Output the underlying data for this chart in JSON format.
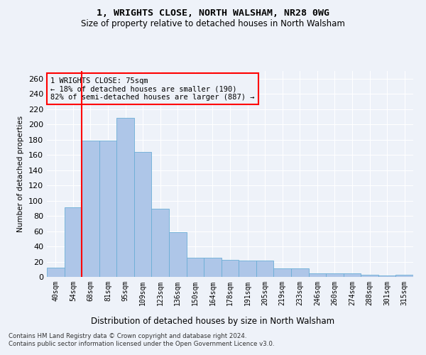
{
  "title1": "1, WRIGHTS CLOSE, NORTH WALSHAM, NR28 0WG",
  "title2": "Size of property relative to detached houses in North Walsham",
  "xlabel": "Distribution of detached houses by size in North Walsham",
  "ylabel": "Number of detached properties",
  "categories": [
    "40sqm",
    "54sqm",
    "68sqm",
    "81sqm",
    "95sqm",
    "109sqm",
    "123sqm",
    "136sqm",
    "150sqm",
    "164sqm",
    "178sqm",
    "191sqm",
    "205sqm",
    "219sqm",
    "233sqm",
    "246sqm",
    "260sqm",
    "274sqm",
    "288sqm",
    "301sqm",
    "315sqm"
  ],
  "values": [
    12,
    91,
    179,
    179,
    209,
    164,
    89,
    59,
    25,
    25,
    22,
    21,
    21,
    11,
    11,
    5,
    5,
    5,
    3,
    2,
    3
  ],
  "bar_color": "#aec6e8",
  "bar_edge_color": "#6baed6",
  "vline_x": 1.5,
  "vline_color": "red",
  "annotation_text": "1 WRIGHTS CLOSE: 75sqm\n← 18% of detached houses are smaller (190)\n82% of semi-detached houses are larger (887) →",
  "ylim": [
    0,
    270
  ],
  "yticks": [
    0,
    20,
    40,
    60,
    80,
    100,
    120,
    140,
    160,
    180,
    200,
    220,
    240,
    260
  ],
  "footer1": "Contains HM Land Registry data © Crown copyright and database right 2024.",
  "footer2": "Contains public sector information licensed under the Open Government Licence v3.0.",
  "bg_color": "#eef2f9",
  "grid_color": "#ffffff"
}
